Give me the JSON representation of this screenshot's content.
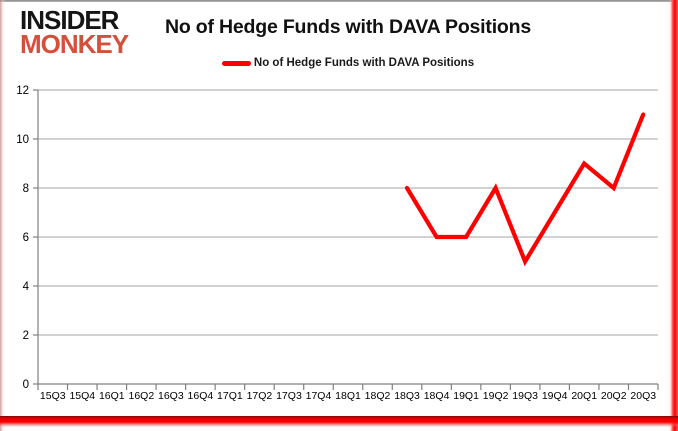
{
  "branding": {
    "line1": "INSIDER",
    "line2": "MONKEY",
    "line2_color": "#d5503c"
  },
  "header": {
    "title": "No of Hedge Funds with DAVA Positions"
  },
  "legend": {
    "label": "No of Hedge Funds with DAVA Positions",
    "line_color": "#ff0000"
  },
  "chart_data": {
    "type": "line",
    "title": "No of Hedge Funds with DAVA Positions",
    "categories": [
      "15Q3",
      "15Q4",
      "16Q1",
      "16Q2",
      "16Q3",
      "16Q4",
      "17Q1",
      "17Q2",
      "17Q3",
      "17Q4",
      "18Q1",
      "18Q2",
      "18Q3",
      "18Q4",
      "19Q1",
      "19Q2",
      "19Q3",
      "19Q4",
      "20Q1",
      "20Q2",
      "20Q3"
    ],
    "series": [
      {
        "name": "No of Hedge Funds with DAVA Positions",
        "color": "#ff0000",
        "start_category": "18Q3",
        "values": [
          8,
          6,
          6,
          8,
          5,
          7,
          9,
          8,
          11
        ]
      }
    ],
    "xlabel": "",
    "ylabel": "",
    "ylim": [
      0,
      12
    ],
    "ytick_step": 2,
    "grid": "horizontal",
    "legend_position": "top",
    "axis_color": "#808080",
    "grid_color": "#a6a6a6",
    "tick_label_color": "#000000"
  }
}
